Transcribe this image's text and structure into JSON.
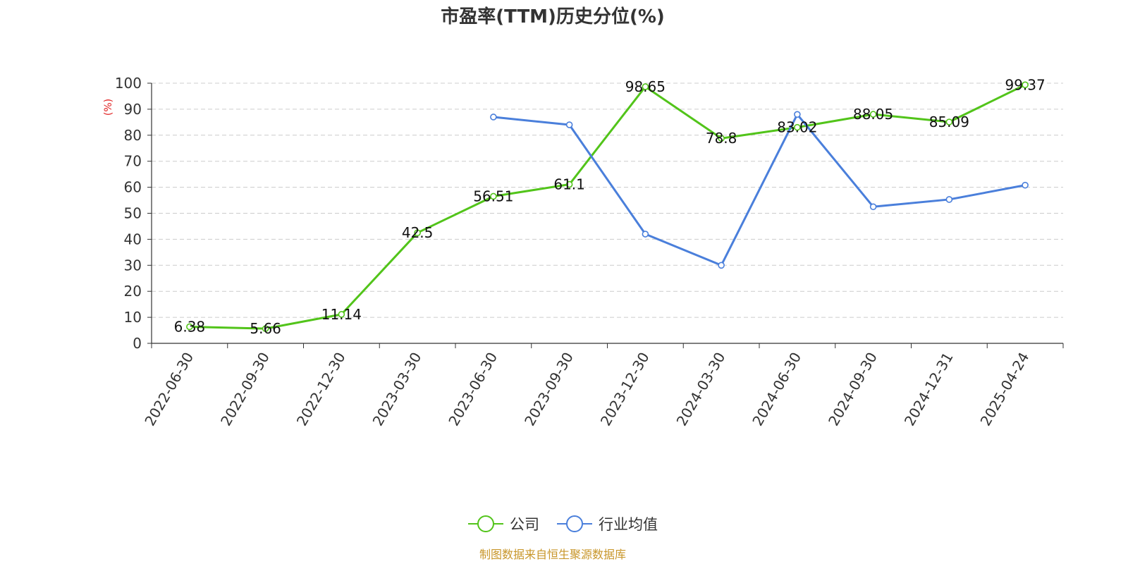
{
  "chart_data": {
    "type": "line",
    "title": "市盈率(TTM)历史分位(%)",
    "ylabel": "(%)",
    "ylim": [
      0,
      100
    ],
    "yticks": [
      0,
      10,
      20,
      30,
      40,
      50,
      60,
      70,
      80,
      90,
      100
    ],
    "grid": true,
    "legend_position": "bottom",
    "categories": [
      "2022-06-30",
      "2022-09-30",
      "2022-12-30",
      "2023-03-30",
      "2023-06-30",
      "2023-09-30",
      "2023-12-30",
      "2024-03-30",
      "2024-06-30",
      "2024-09-30",
      "2024-12-31",
      "2025-04-24"
    ],
    "series": [
      {
        "name": "公司",
        "color": "#52c41a",
        "show_labels": true,
        "values": [
          6.38,
          5.66,
          11.14,
          42.5,
          56.51,
          61.1,
          98.65,
          78.8,
          83.02,
          88.05,
          85.09,
          99.37
        ]
      },
      {
        "name": "行业均值",
        "color": "#4a7fdb",
        "show_labels": false,
        "values": [
          null,
          null,
          null,
          null,
          87,
          84,
          42,
          30,
          88,
          52.5,
          55.3,
          60.8
        ]
      }
    ],
    "source": "制图数据来自恒生聚源数据库",
    "source_color": "#c8962a",
    "ylabel_color": "#e02020"
  }
}
